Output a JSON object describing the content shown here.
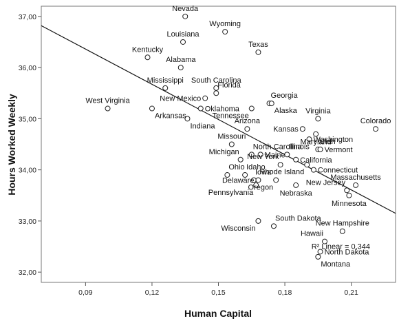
{
  "chart_data": {
    "type": "scatter",
    "xlabel": "Human Capital",
    "ylabel": "Hours Worked Weekly",
    "xlim": [
      0.07,
      0.23
    ],
    "ylim": [
      31.8,
      37.2
    ],
    "x_ticks": [
      0.09,
      0.12,
      0.15,
      0.18,
      0.21
    ],
    "x_tick_labels": [
      "0,09",
      "0,12",
      "0,15",
      "0,18",
      "0,21"
    ],
    "y_ticks": [
      32,
      33,
      34,
      35,
      36,
      37
    ],
    "y_tick_labels": [
      "32,00",
      "33,00",
      "34,00",
      "35,00",
      "36,00",
      "37,00"
    ],
    "fit_line": {
      "x": [
        0.07,
        0.23
      ],
      "y": [
        36.82,
        33.15
      ],
      "label": "R² Linear = 0,344"
    },
    "points": [
      {
        "label": "Nevada",
        "x": 0.135,
        "y": 37.0
      },
      {
        "label": "Wyoming",
        "x": 0.153,
        "y": 36.7
      },
      {
        "label": "Louisiana",
        "x": 0.134,
        "y": 36.5
      },
      {
        "label": "Texas",
        "x": 0.168,
        "y": 36.3
      },
      {
        "label": "Kentucky",
        "x": 0.118,
        "y": 36.2
      },
      {
        "label": "Alabama",
        "x": 0.133,
        "y": 36.0
      },
      {
        "label": "Mississippi",
        "x": 0.126,
        "y": 35.6
      },
      {
        "label": "South Carolina",
        "x": 0.149,
        "y": 35.6
      },
      {
        "label": "Florida",
        "x": 0.149,
        "y": 35.5
      },
      {
        "label": "Georgia",
        "x": 0.173,
        "y": 35.3
      },
      {
        "label": "New Mexico",
        "x": 0.144,
        "y": 35.4
      },
      {
        "label": "Oklahoma",
        "x": 0.142,
        "y": 35.2
      },
      {
        "label": "West Virginia",
        "x": 0.1,
        "y": 35.2
      },
      {
        "label": "Arkansas",
        "x": 0.12,
        "y": 35.2
      },
      {
        "label": "Alaska",
        "x": 0.174,
        "y": 35.3
      },
      {
        "label": "Tennessee",
        "x": 0.165,
        "y": 35.2
      },
      {
        "label": "Indiana",
        "x": 0.136,
        "y": 35.0
      },
      {
        "label": "Virginia",
        "x": 0.195,
        "y": 35.0
      },
      {
        "label": "Colorado",
        "x": 0.221,
        "y": 34.8
      },
      {
        "label": "Arizona",
        "x": 0.163,
        "y": 34.8
      },
      {
        "label": "Kansas",
        "x": 0.188,
        "y": 34.8
      },
      {
        "label": "Maryland",
        "x": 0.194,
        "y": 34.7
      },
      {
        "label": "Washington",
        "x": 0.191,
        "y": 34.6
      },
      {
        "label": "Missouri",
        "x": 0.156,
        "y": 34.5
      },
      {
        "label": "North Carolina",
        "x": 0.165,
        "y": 34.3
      },
      {
        "label": "Illinois",
        "x": 0.181,
        "y": 34.3
      },
      {
        "label": "Utah",
        "x": 0.195,
        "y": 34.4
      },
      {
        "label": "Vermont",
        "x": 0.196,
        "y": 34.4
      },
      {
        "label": "Michigan",
        "x": 0.16,
        "y": 34.2
      },
      {
        "label": "Maine",
        "x": 0.169,
        "y": 34.3
      },
      {
        "label": "California",
        "x": 0.185,
        "y": 34.2
      },
      {
        "label": "New York",
        "x": 0.178,
        "y": 34.1
      },
      {
        "label": "Ohio",
        "x": 0.154,
        "y": 33.9
      },
      {
        "label": "Idaho",
        "x": 0.162,
        "y": 33.9
      },
      {
        "label": "Iowa",
        "x": 0.166,
        "y": 33.8
      },
      {
        "label": "Rhode Island",
        "x": 0.19,
        "y": 34.1
      },
      {
        "label": "Connecticut",
        "x": 0.193,
        "y": 34.0
      },
      {
        "label": "Delaware",
        "x": 0.168,
        "y": 33.8
      },
      {
        "label": "Massachusetts",
        "x": 0.212,
        "y": 33.7
      },
      {
        "label": "Oregon",
        "x": 0.176,
        "y": 33.8
      },
      {
        "label": "New Jersey",
        "x": 0.208,
        "y": 33.6
      },
      {
        "label": "Pennsylvania",
        "x": 0.167,
        "y": 33.7
      },
      {
        "label": "Nebraska",
        "x": 0.185,
        "y": 33.7
      },
      {
        "label": "Minnesota",
        "x": 0.209,
        "y": 33.5
      },
      {
        "label": "South Dakota",
        "x": 0.175,
        "y": 32.9
      },
      {
        "label": "Wisconsin",
        "x": 0.168,
        "y": 33.0
      },
      {
        "label": "New Hampshire",
        "x": 0.206,
        "y": 32.8
      },
      {
        "label": "Hawaii",
        "x": 0.198,
        "y": 32.6
      },
      {
        "label": "North Dakota",
        "x": 0.196,
        "y": 32.4
      },
      {
        "label": "Montana",
        "x": 0.195,
        "y": 32.3
      }
    ]
  }
}
